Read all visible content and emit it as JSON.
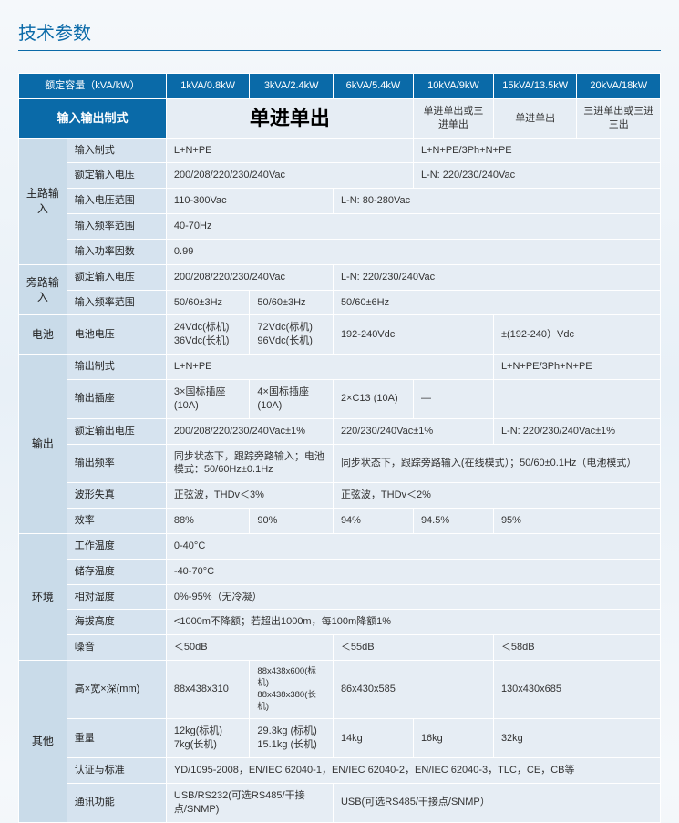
{
  "title": "技术参数",
  "header": {
    "cap_label": "额定容量（kVA/kW）",
    "c1": "1kVA/0.8kW",
    "c2": "3kVA/2.4kW",
    "c3": "6kVA/5.4kW",
    "c4": "10kVA/9kW",
    "c5": "15kVA/13.5kW",
    "c6": "20kVA/18kW"
  },
  "cfg": {
    "label": "输入输出制式",
    "big": "单进单出",
    "c4": "单进单出或三进单出",
    "c5a": "单进单出",
    "c5b": "三进单出或三进三出"
  },
  "sec": {
    "main_in": "主路输入",
    "bypass_in": "旁路输入",
    "battery": "电池",
    "output": "输出",
    "env": "环境",
    "other": "其他"
  },
  "p": {
    "in_mode": "输入制式",
    "rated_in_v": "额定输入电压",
    "in_v_range": "输入电压范围",
    "in_f_range": "输入频率范围",
    "in_pf": "输入功率因数",
    "byp_rated_v": "额定输入电压",
    "byp_f_range": "输入频率范围",
    "bat_v": "电池电压",
    "out_mode": "输出制式",
    "out_socket": "输出插座",
    "rated_out_v": "额定输出电压",
    "out_f": "输出频率",
    "wave": "波形失真",
    "eff": "效率",
    "temp_op": "工作温度",
    "temp_st": "储存温度",
    "humidity": "相对湿度",
    "altitude": "海拔高度",
    "noise": "噪音",
    "dim": "高×宽×深(mm)",
    "weight": "重量",
    "cert": "认证与标准",
    "comm": "通讯功能"
  },
  "v": {
    "in_mode_a": "L+N+PE",
    "in_mode_b": "L+N+PE/3Ph+N+PE",
    "rated_in_v_a": "200/208/220/230/240Vac",
    "rated_in_v_b": "L-N: 220/230/240Vac",
    "in_v_range_a": "110-300Vac",
    "in_v_range_b": "L-N: 80-280Vac",
    "in_f_range": "40-70Hz",
    "in_pf": "0.99",
    "byp_v_a": "200/208/220/230/240Vac",
    "byp_v_b": "L-N: 220/230/240Vac",
    "byp_f_a": "50/60±3Hz",
    "byp_f_b": "50/60±3Hz",
    "byp_f_c": "50/60±6Hz",
    "bat_a": "24Vdc(标机) 36Vdc(长机)",
    "bat_b": "72Vdc(标机) 96Vdc(长机)",
    "bat_c": "192-240Vdc",
    "bat_d": "±(192-240）Vdc",
    "out_mode_a": "L+N+PE",
    "out_mode_b": "L+N+PE/3Ph+N+PE",
    "sock_a": "3×国标插座(10A)",
    "sock_b": "4×国标插座(10A)",
    "sock_c": "2×C13 (10A)",
    "sock_d": "—",
    "out_v_a": "200/208/220/230/240Vac±1%",
    "out_v_b": "220/230/240Vac±1%",
    "out_v_c": "L-N: 220/230/240Vac±1%",
    "out_f_a": "同步状态下，跟踪旁路输入；电池模式：50/60Hz±0.1Hz",
    "out_f_b": "同步状态下，跟踪旁路输入(在线模式）；50/60±0.1Hz（电池模式）",
    "wave_a": "正弦波，THDv＜3%",
    "wave_b": "正弦波，THDv＜2%",
    "eff_1": "88%",
    "eff_2": "90%",
    "eff_3": "94%",
    "eff_4": "94.5%",
    "eff_5": "95%",
    "temp_op": "0-40°C",
    "temp_st": "-40-70°C",
    "humidity": "0%-95%（无冷凝）",
    "altitude": "<1000m不降额；若超出1000m，每100m降额1%",
    "noise_a": "＜50dB",
    "noise_b": "＜55dB",
    "noise_c": "＜58dB",
    "dim_a": "88x438x310",
    "dim_b": "88x438x600(标机) 88x438x380(长机)",
    "dim_c": "86x430x585",
    "dim_d": "130x430x685",
    "wt_a": "12kg(标机)   7kg(长机)",
    "wt_b": "29.3kg (标机) 15.1kg (长机)",
    "wt_c": "14kg",
    "wt_d": "16kg",
    "wt_e": "32kg",
    "cert": "YD/1095-2008，EN/IEC 62040-1，EN/IEC 62040-2，EN/IEC 62040-3，TLC，CE，CB等",
    "comm_a": "USB/RS232(可选RS485/干接点/SNMP)",
    "comm_b": "USB(可选RS485/干接点/SNMP）"
  }
}
